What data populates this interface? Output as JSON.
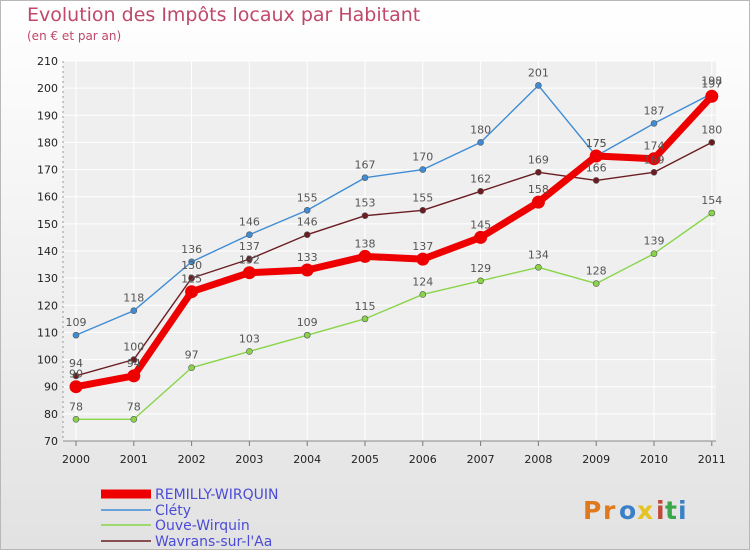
{
  "header": {
    "title": "Evolution des Impôts locaux par Habitant",
    "subtitle": "(en € et par an)"
  },
  "logo": {
    "text": "Proxiti",
    "letters": [
      "P",
      "r",
      "o",
      "x",
      "i",
      "t",
      "i"
    ],
    "colors": [
      "#e0781e",
      "#e0781e",
      "#3a80c8",
      "#e6c31e",
      "#c04a3a",
      "#3aa84a",
      "#3a80c8"
    ]
  },
  "chart_data": {
    "type": "line",
    "title": "Evolution des Impôts locaux par Habitant",
    "subtitle": "(en € et par an)",
    "xlabel": "",
    "ylabel": "",
    "ylim": [
      70,
      210
    ],
    "yticks": [
      70,
      80,
      90,
      100,
      110,
      120,
      130,
      140,
      150,
      160,
      170,
      180,
      190,
      200,
      210
    ],
    "x": [
      "2000",
      "2001",
      "2002",
      "2003",
      "2004",
      "2005",
      "2006",
      "2007",
      "2008",
      "2009",
      "2010",
      "2011"
    ],
    "grid": true,
    "legend_position": "bottom-left",
    "series": [
      {
        "name": "Wavrans-sur-l'Aa",
        "color": "#6b1d22",
        "values": [
          94,
          100,
          130,
          137,
          146,
          153,
          155,
          162,
          169,
          166,
          169,
          180
        ],
        "labels": [
          "94",
          "100",
          "130",
          "137",
          "146",
          "153",
          "155",
          "162",
          "169",
          "166",
          "169",
          "180"
        ]
      },
      {
        "name": "Ouve-Wirquin",
        "color": "#8ad44a",
        "values": [
          78,
          78,
          97,
          103,
          109,
          115,
          124,
          129,
          134,
          128,
          139,
          154
        ],
        "labels": [
          "78",
          "78",
          "97",
          "103",
          "109",
          "115",
          "124",
          "129",
          "134",
          "128",
          "139",
          "154"
        ]
      },
      {
        "name": "Cléty",
        "color": "#3f8cd4",
        "values": [
          109,
          118,
          136,
          146,
          155,
          167,
          170,
          180,
          201,
          175,
          187,
          198
        ],
        "labels": [
          "109",
          "118",
          "136",
          "146",
          "155",
          "167",
          "170",
          "180",
          "201",
          "175",
          "187",
          "198"
        ]
      },
      {
        "name": "REMILLY-WIRQUIN",
        "color": "#ee0000",
        "values": [
          90,
          94,
          125,
          132,
          133,
          138,
          137,
          145,
          158,
          175,
          174,
          197
        ],
        "labels": [
          "90",
          "94",
          "125",
          "132",
          "133",
          "138",
          "137",
          "145",
          "158",
          "175",
          "174",
          "197"
        ]
      }
    ],
    "legend_order": [
      "REMILLY-WIRQUIN",
      "Cléty",
      "Ouve-Wirquin",
      "Wavrans-sur-l'Aa"
    ]
  }
}
